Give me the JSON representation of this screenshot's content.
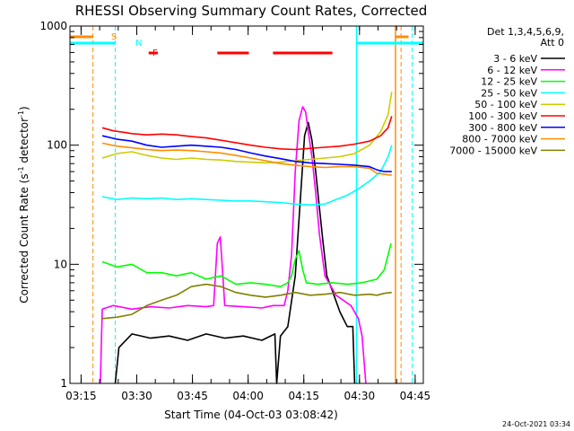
{
  "chart_data": {
    "type": "line",
    "title": "RHESSI Observing Summary Count Rates, Corrected",
    "xlabel": "Start Time (04-Oct-03 03:08:42)",
    "ylabel": "Corrected Count Rate (s",
    "ylabel_sup1": "-1",
    "ylabel_mid": " detector",
    "ylabel_sup2": "-1",
    "ylabel_end": ")",
    "y_scale": "log",
    "ylim": [
      1,
      1000
    ],
    "y_ticks": [
      {
        "value": 1,
        "label": "1"
      },
      {
        "value": 10,
        "label": "10"
      },
      {
        "value": 100,
        "label": "100"
      },
      {
        "value": 1000,
        "label": "1000"
      }
    ],
    "xlim_minutes": [
      3.3,
      98.5
    ],
    "x_ticks": [
      {
        "label": "03:15",
        "t": 6.3
      },
      {
        "label": "03:30",
        "t": 21.3
      },
      {
        "label": "03:45",
        "t": 36.3
      },
      {
        "label": "04:00",
        "t": 51.3
      },
      {
        "label": "04:15",
        "t": 66.3
      },
      {
        "label": "04:30",
        "t": 81.3
      },
      {
        "label": "04:45",
        "t": 96.3
      }
    ],
    "legend": {
      "header1": "Det 1,3,4,5,6,9,",
      "header2": "Att 0",
      "placement": "outside-right"
    },
    "series": [
      {
        "name": "3 - 6 keV",
        "color": "#000000",
        "points": [
          [
            15.5,
            1
          ],
          [
            16.5,
            2.0
          ],
          [
            20,
            2.6
          ],
          [
            25,
            2.4
          ],
          [
            30,
            2.5
          ],
          [
            35,
            2.3
          ],
          [
            40,
            2.6
          ],
          [
            45,
            2.4
          ],
          [
            50,
            2.5
          ],
          [
            55,
            2.3
          ],
          [
            58.5,
            2.6
          ],
          [
            59,
            1
          ],
          [
            60,
            2.5
          ],
          [
            62,
            3
          ],
          [
            64,
            8
          ],
          [
            65.5,
            40
          ],
          [
            66.5,
            120
          ],
          [
            67.5,
            155
          ],
          [
            68.5,
            110
          ],
          [
            69.5,
            60
          ],
          [
            70.5,
            30
          ],
          [
            71.5,
            15
          ],
          [
            72.5,
            8
          ],
          [
            74,
            6
          ],
          [
            76,
            4
          ],
          [
            78,
            3
          ],
          [
            79.5,
            3
          ],
          [
            80,
            1
          ]
        ]
      },
      {
        "name": "6 - 12 keV",
        "color": "#ff00ff",
        "points": [
          [
            11.5,
            1
          ],
          [
            12,
            4.2
          ],
          [
            15,
            4.5
          ],
          [
            20,
            4.2
          ],
          [
            25,
            4.4
          ],
          [
            30,
            4.3
          ],
          [
            35,
            4.5
          ],
          [
            40,
            4.4
          ],
          [
            42,
            4.5
          ],
          [
            43,
            15
          ],
          [
            43.8,
            17
          ],
          [
            44.5,
            8
          ],
          [
            45,
            4.5
          ],
          [
            50,
            4.4
          ],
          [
            55,
            4.3
          ],
          [
            58,
            4.5
          ],
          [
            61,
            4.5
          ],
          [
            62,
            6
          ],
          [
            63,
            12
          ],
          [
            64,
            60
          ],
          [
            65,
            160
          ],
          [
            66,
            210
          ],
          [
            66.8,
            190
          ],
          [
            67.5,
            130
          ],
          [
            68.5,
            80
          ],
          [
            69.5,
            40
          ],
          [
            70.5,
            18
          ],
          [
            72,
            8
          ],
          [
            75,
            5.5
          ],
          [
            79,
            4.5
          ],
          [
            81,
            3.5
          ],
          [
            82,
            2.5
          ],
          [
            83,
            1
          ]
        ]
      },
      {
        "name": "12 - 25 keV",
        "color": "#00ff00",
        "points": [
          [
            12,
            10.5
          ],
          [
            16,
            9.5
          ],
          [
            20,
            10
          ],
          [
            24,
            8.5
          ],
          [
            28,
            8.5
          ],
          [
            32,
            8
          ],
          [
            36,
            8.5
          ],
          [
            40,
            7.5
          ],
          [
            44,
            8
          ],
          [
            48,
            6.8
          ],
          [
            52,
            7
          ],
          [
            56,
            6.8
          ],
          [
            60,
            6.5
          ],
          [
            62,
            7
          ],
          [
            63,
            8
          ],
          [
            64,
            11
          ],
          [
            65,
            13
          ],
          [
            66,
            9
          ],
          [
            67,
            7
          ],
          [
            70,
            6.8
          ],
          [
            74,
            7
          ],
          [
            78,
            6.8
          ],
          [
            82,
            7
          ],
          [
            86,
            7.5
          ],
          [
            88,
            9
          ],
          [
            89,
            12
          ],
          [
            89.8,
            15
          ]
        ]
      },
      {
        "name": "25 - 50 keV",
        "color": "#00ffff",
        "points": [
          [
            12,
            37
          ],
          [
            16,
            35
          ],
          [
            20,
            36
          ],
          [
            24,
            35.5
          ],
          [
            28,
            36
          ],
          [
            32,
            35
          ],
          [
            36,
            35.5
          ],
          [
            40,
            35
          ],
          [
            44,
            34.5
          ],
          [
            48,
            34
          ],
          [
            52,
            34
          ],
          [
            56,
            33.5
          ],
          [
            60,
            33
          ],
          [
            64,
            32
          ],
          [
            68,
            31.5
          ],
          [
            72,
            32
          ],
          [
            75,
            35
          ],
          [
            78,
            38
          ],
          [
            81,
            43
          ],
          [
            84,
            50
          ],
          [
            87,
            60
          ],
          [
            89,
            80
          ],
          [
            90,
            100
          ]
        ]
      },
      {
        "name": "50 - 100 keV",
        "color": "#cccc00",
        "points": [
          [
            12,
            78
          ],
          [
            16,
            85
          ],
          [
            20,
            88
          ],
          [
            24,
            82
          ],
          [
            28,
            78
          ],
          [
            32,
            76
          ],
          [
            36,
            78
          ],
          [
            40,
            76
          ],
          [
            44,
            75
          ],
          [
            48,
            73
          ],
          [
            52,
            72
          ],
          [
            56,
            71
          ],
          [
            60,
            72
          ],
          [
            64,
            74
          ],
          [
            68,
            76
          ],
          [
            72,
            78
          ],
          [
            76,
            80
          ],
          [
            80,
            85
          ],
          [
            84,
            100
          ],
          [
            87,
            130
          ],
          [
            89,
            180
          ],
          [
            90,
            280
          ]
        ]
      },
      {
        "name": "100 - 300 keV",
        "color": "#ff0000",
        "points": [
          [
            12,
            140
          ],
          [
            15,
            132
          ],
          [
            18,
            128
          ],
          [
            20,
            125
          ],
          [
            24,
            122
          ],
          [
            28,
            124
          ],
          [
            32,
            122
          ],
          [
            36,
            118
          ],
          [
            40,
            115
          ],
          [
            44,
            110
          ],
          [
            48,
            105
          ],
          [
            52,
            100
          ],
          [
            56,
            96
          ],
          [
            60,
            93
          ],
          [
            64,
            92
          ],
          [
            68,
            94
          ],
          [
            72,
            96
          ],
          [
            76,
            98
          ],
          [
            80,
            102
          ],
          [
            84,
            108
          ],
          [
            87,
            120
          ],
          [
            89,
            140
          ],
          [
            90,
            175
          ]
        ]
      },
      {
        "name": "300 - 800 keV",
        "color": "#0000ff",
        "points": [
          [
            12,
            120
          ],
          [
            16,
            112
          ],
          [
            20,
            108
          ],
          [
            24,
            100
          ],
          [
            28,
            96
          ],
          [
            32,
            98
          ],
          [
            36,
            100
          ],
          [
            40,
            98
          ],
          [
            44,
            96
          ],
          [
            48,
            92
          ],
          [
            52,
            86
          ],
          [
            56,
            81
          ],
          [
            60,
            77
          ],
          [
            64,
            73
          ],
          [
            68,
            71
          ],
          [
            72,
            70
          ],
          [
            76,
            69
          ],
          [
            80,
            68
          ],
          [
            84,
            66
          ],
          [
            86,
            62
          ],
          [
            88,
            60
          ],
          [
            90,
            60
          ]
        ]
      },
      {
        "name": "800 - 7000 keV",
        "color": "#ff8c00",
        "points": [
          [
            12,
            104
          ],
          [
            16,
            98
          ],
          [
            20,
            95
          ],
          [
            24,
            92
          ],
          [
            28,
            90
          ],
          [
            32,
            91
          ],
          [
            36,
            90
          ],
          [
            40,
            88
          ],
          [
            44,
            86
          ],
          [
            48,
            82
          ],
          [
            52,
            78
          ],
          [
            56,
            74
          ],
          [
            60,
            70
          ],
          [
            64,
            68
          ],
          [
            68,
            66
          ],
          [
            72,
            65
          ],
          [
            76,
            66
          ],
          [
            80,
            66
          ],
          [
            84,
            64
          ],
          [
            86,
            58
          ],
          [
            88,
            57
          ],
          [
            90,
            56
          ]
        ]
      },
      {
        "name": "7000 - 15000 keV",
        "color": "#808000",
        "points": [
          [
            12,
            3.5
          ],
          [
            16,
            3.6
          ],
          [
            20,
            3.8
          ],
          [
            24,
            4.5
          ],
          [
            28,
            5
          ],
          [
            32,
            5.5
          ],
          [
            36,
            6.5
          ],
          [
            40,
            6.8
          ],
          [
            44,
            6.5
          ],
          [
            48,
            5.8
          ],
          [
            52,
            5.5
          ],
          [
            56,
            5.3
          ],
          [
            60,
            5.5
          ],
          [
            64,
            5.8
          ],
          [
            68,
            5.5
          ],
          [
            72,
            5.6
          ],
          [
            76,
            5.8
          ],
          [
            80,
            5.5
          ],
          [
            84,
            5.6
          ],
          [
            86,
            5.5
          ],
          [
            88,
            5.7
          ],
          [
            90,
            5.8
          ]
        ]
      }
    ],
    "annotations": {
      "s_label": "S",
      "n_label": "N",
      "f_label": "F",
      "saa_color": "#ff8c00",
      "night_color": "#00ffff",
      "flare_color": "#ff0000",
      "saa_times": [
        9.5,
        92.5
      ],
      "night_times": [
        15.5,
        95.5
      ],
      "night_end_solid": 80.5,
      "saa_start_solid": 91.0,
      "saa_bars": [
        [
          3.3,
          9.5
        ],
        [
          91,
          94.5
        ]
      ],
      "night_bars": [
        [
          3.3,
          15.5
        ],
        [
          80.5,
          98.5
        ]
      ],
      "flare_bars": [
        [
          24.5,
          27
        ],
        [
          43,
          51.5
        ],
        [
          58,
          74
        ]
      ]
    }
  },
  "footer": {
    "timestamp": "24-Oct-2021 03:34"
  }
}
